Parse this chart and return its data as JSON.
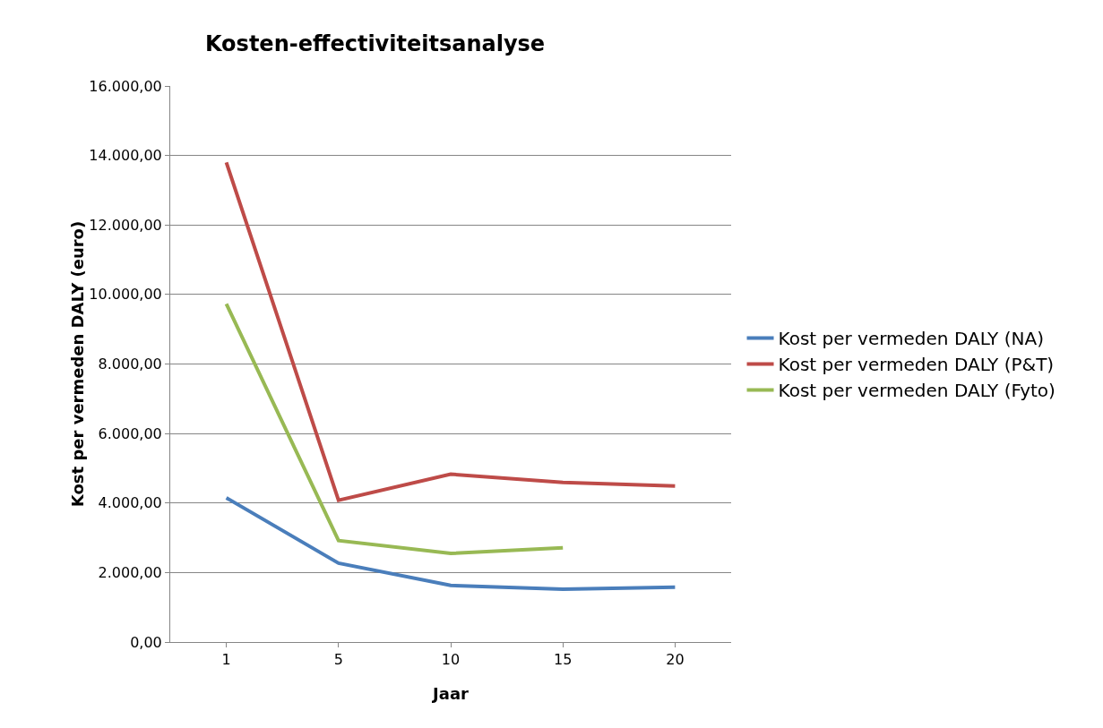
{
  "chart_data": {
    "type": "line",
    "title": "Kosten-effectiviteitsanalyse",
    "xlabel": "Jaar",
    "ylabel": "Kost per vermeden DALY (euro)",
    "categories": [
      "1",
      "5",
      "10",
      "15",
      "20"
    ],
    "series": [
      {
        "name": "Kost per vermeden DALY (NA)",
        "color": "#4a7ebb",
        "values": [
          4150,
          2270,
          1630,
          1520,
          1580
        ]
      },
      {
        "name": "Kost per vermeden DALY (P&T)",
        "color": "#be4b48",
        "values": [
          13800,
          4080,
          4830,
          4590,
          4490
        ]
      },
      {
        "name": "Kost per vermeden DALY (Fyto)",
        "color": "#98b954",
        "values": [
          9730,
          2920,
          2550,
          2710,
          null
        ]
      }
    ],
    "ylim": [
      0,
      16000
    ],
    "yticks": [
      {
        "value": 0,
        "label": "0,00"
      },
      {
        "value": 2000,
        "label": "2.000,00"
      },
      {
        "value": 4000,
        "label": "4.000,00"
      },
      {
        "value": 6000,
        "label": "6.000,00"
      },
      {
        "value": 8000,
        "label": "8.000,00"
      },
      {
        "value": 10000,
        "label": "10.000,00"
      },
      {
        "value": 12000,
        "label": "12.000,00"
      },
      {
        "value": 14000,
        "label": "14.000,00"
      },
      {
        "value": 16000,
        "label": "16.000,00"
      }
    ],
    "grid": "y",
    "legend": "right",
    "marker": "none",
    "line_style": "solid"
  }
}
